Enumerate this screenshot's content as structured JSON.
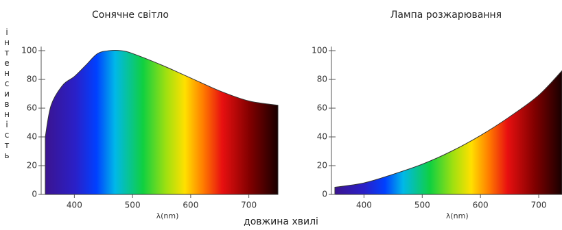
{
  "y_axis_label": "інтенсивність",
  "x_axis_label": "довжина хвилі",
  "chart_data": [
    {
      "type": "area",
      "title": "Сонячне світло",
      "xlabel": "λ(nm)",
      "x": [
        350,
        360,
        380,
        400,
        420,
        440,
        460,
        480,
        500,
        550,
        600,
        650,
        700,
        750
      ],
      "series": [
        {
          "values": [
            40,
            62,
            76,
            82,
            90,
            98,
            100,
            100,
            98,
            90,
            81,
            72,
            65,
            62
          ]
        }
      ],
      "xlim": [
        350,
        750
      ],
      "xticks": [
        400,
        500,
        600,
        700
      ],
      "ylim": [
        0,
        100
      ],
      "yticks": [
        0,
        20,
        40,
        60,
        80,
        100
      ]
    },
    {
      "type": "area",
      "title": "Лампа розжарювання",
      "xlabel": "λ(nm)",
      "x": [
        350,
        400,
        450,
        500,
        550,
        600,
        650,
        700,
        740
      ],
      "series": [
        {
          "values": [
            5,
            8,
            14,
            21,
            30,
            41,
            54,
            69,
            86
          ]
        }
      ],
      "xlim": [
        350,
        740
      ],
      "xticks": [
        400,
        500,
        600,
        700
      ],
      "ylim": [
        0,
        100
      ],
      "yticks": [
        0,
        20,
        40,
        60,
        80,
        100
      ]
    }
  ]
}
